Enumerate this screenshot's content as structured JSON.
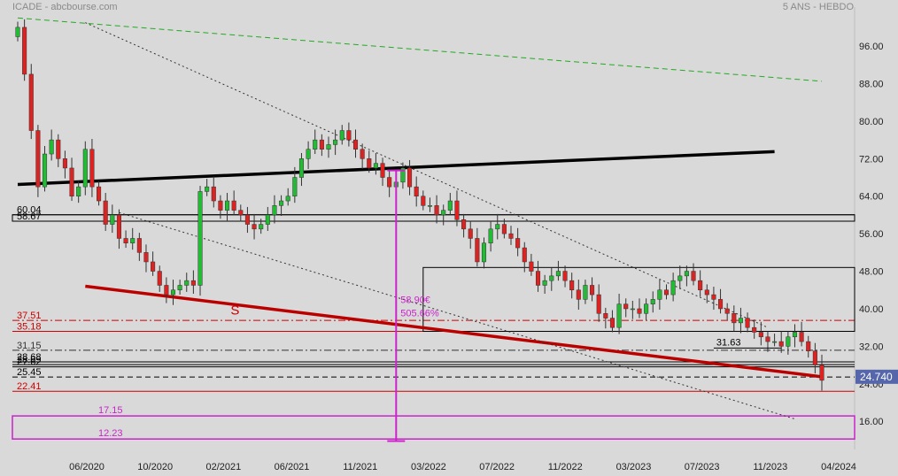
{
  "header": {
    "symbol": "ICADE",
    "source": "abcbourse.com",
    "title_left": "ICADE - abcbourse.com",
    "title_right": "5 ANS - HEBDO"
  },
  "chart_data": {
    "type": "candlestick",
    "title": "ICADE",
    "period": "5 ANS - HEBDO",
    "ylim": [
      10,
      103
    ],
    "y_ticks": [
      16,
      24,
      32,
      40,
      48,
      56,
      64,
      72,
      80,
      88,
      96
    ],
    "y_tick_labels": [
      "16.00",
      "24.00",
      "32.00",
      "40.00",
      "48.00",
      "56.00",
      "64.00",
      "72.00",
      "80.00",
      "88.00",
      "96.00"
    ],
    "x_tick_labels": [
      "06/2020",
      "10/2020",
      "02/2021",
      "06/2021",
      "11/2021",
      "03/2022",
      "07/2022",
      "11/2022",
      "03/2023",
      "07/2023",
      "11/2023",
      "04/2024"
    ],
    "x_range_index": [
      0,
      119
    ],
    "last_price_label": "24.740",
    "closes": [
      100,
      90,
      78,
      66,
      73,
      76,
      72,
      70,
      64,
      66,
      74,
      66,
      63,
      58,
      60,
      55,
      54,
      55,
      52,
      50,
      48,
      45,
      43,
      44,
      45,
      46,
      45,
      65,
      66,
      63,
      61,
      63,
      61,
      60,
      58,
      57,
      58,
      60,
      62,
      63,
      64,
      68,
      72,
      74,
      76,
      74,
      75,
      76,
      78,
      76,
      74,
      72,
      70,
      71,
      68,
      66,
      67,
      70,
      66,
      64,
      62,
      62,
      60,
      61,
      63,
      59,
      57,
      55,
      50,
      54,
      57,
      58,
      56,
      55,
      53,
      50,
      48,
      45,
      46,
      47,
      48,
      46,
      44,
      42,
      45,
      43,
      39,
      38,
      36,
      41,
      40,
      40,
      39,
      41,
      42,
      44,
      43,
      46,
      47,
      48,
      46,
      44,
      43,
      42,
      40,
      39,
      37,
      38,
      36,
      35,
      34,
      33,
      33,
      32,
      34,
      35,
      33,
      31,
      28,
      24.74
    ],
    "hlines": [
      {
        "label": "60.04",
        "value": 60.04,
        "color": "#000000",
        "style": "solid"
      },
      {
        "label": "58.67",
        "value": 58.67,
        "color": "#000000",
        "style": "solid"
      },
      {
        "label": "37.51",
        "value": 37.51,
        "color": "#cc0000",
        "style": "dashdot"
      },
      {
        "label": "35.18",
        "value": 35.18,
        "color": "#cc0000",
        "style": "solid"
      },
      {
        "label": "31.15",
        "value": 31.15,
        "color": "#333333",
        "style": "dashdot"
      },
      {
        "label": "28.68",
        "value": 28.68,
        "color": "#000000",
        "style": "solid"
      },
      {
        "label": "28.09",
        "value": 28.09,
        "color": "#000000",
        "style": "solid"
      },
      {
        "label": "27.62",
        "value": 27.62,
        "color": "#000000",
        "style": "solid"
      },
      {
        "label": "25.45",
        "value": 25.45,
        "color": "#000000",
        "style": "dashed"
      },
      {
        "label": "22.41",
        "value": 22.41,
        "color": "#cc0000",
        "style": "solid"
      }
    ],
    "trendlines": [
      {
        "name": "upper-green",
        "from": [
          0,
          102
        ],
        "to": [
          119,
          88.5
        ],
        "color": "#22aa22",
        "style": "dashed"
      },
      {
        "name": "support-black",
        "from": [
          0,
          66.5
        ],
        "to": [
          112,
          73.5
        ],
        "color": "#000000",
        "style": "bold"
      },
      {
        "name": "support-red",
        "from": [
          10,
          44.8
        ],
        "to": [
          119,
          25.5
        ],
        "color": "#bb0000",
        "style": "bold"
      },
      {
        "name": "channel-top-dotted",
        "from": [
          10,
          101
        ],
        "to": [
          111,
          36
        ],
        "color": "#333333",
        "style": "dotted"
      },
      {
        "name": "channel-bottom-dotted",
        "from": [
          15,
          60.5
        ],
        "to": [
          115,
          16.5
        ],
        "color": "#333333",
        "style": "dotted"
      }
    ],
    "annotations": {
      "S": "S",
      "range_high": "58.90€",
      "range_pct": "505.66%",
      "mini_level": "31.63",
      "zone_high": "17.15",
      "zone_low": "12.23"
    },
    "colors": {
      "up": "#22bb33",
      "down": "#dd2222",
      "background": "#d9d9d9",
      "magenta": "#cc22cc",
      "price_tag": "#5566aa"
    }
  }
}
